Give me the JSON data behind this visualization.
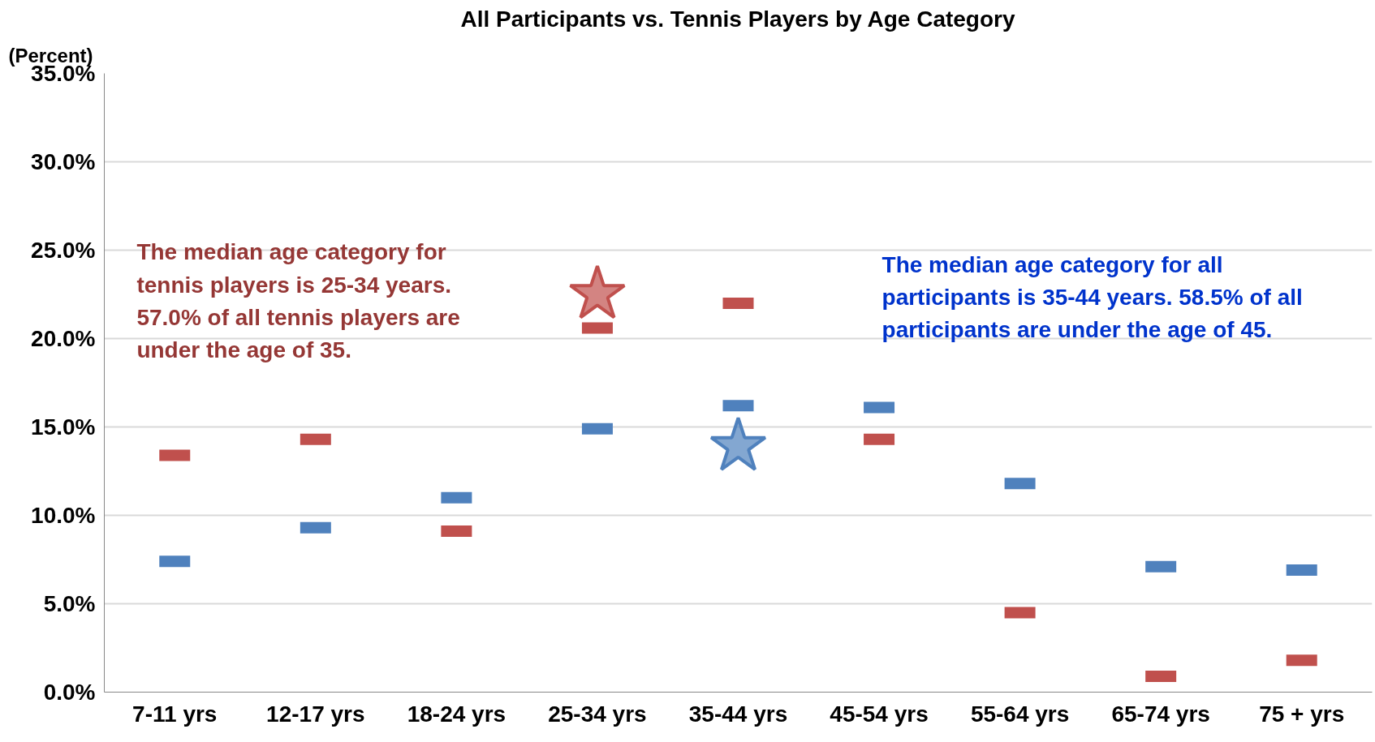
{
  "chart_data": {
    "type": "scatter",
    "title": "All Participants vs. Tennis Players by Age Category",
    "ylabel": "(Percent)",
    "categories": [
      "7-11 yrs",
      "12-17 yrs",
      "18-24 yrs",
      "25-34 yrs",
      "35-44 yrs",
      "45-54 yrs",
      "55-64 yrs",
      "65-74 yrs",
      "75 + yrs"
    ],
    "series": [
      {
        "color": "#4f81bd",
        "values": [
          7.4,
          9.3,
          11.0,
          14.9,
          16.2,
          16.1,
          11.8,
          7.1,
          6.9
        ]
      },
      {
        "color": "#c0504d",
        "values": [
          13.4,
          14.3,
          9.1,
          20.6,
          22.0,
          14.3,
          4.5,
          0.9,
          1.8
        ]
      },
      {
        "color": "#c0504d",
        "marker": "star",
        "x": [
          "25-34 yrs"
        ],
        "values": [
          22.5
        ]
      },
      {
        "color": "#4f81bd",
        "marker": "star",
        "x": [
          "35-44 yrs"
        ],
        "values": [
          13.9
        ]
      }
    ],
    "ylim": [
      0,
      35
    ],
    "yticks": [
      {
        "value": 0,
        "label": "0.0%"
      },
      {
        "value": 5,
        "label": "5.0%"
      },
      {
        "value": 10,
        "label": "10.0%"
      },
      {
        "value": 15,
        "label": "15.0%"
      },
      {
        "value": 20,
        "label": "20.0%"
      },
      {
        "value": 25,
        "label": "25.0%"
      },
      {
        "value": 30,
        "label": "30.0%"
      },
      {
        "value": 35,
        "label": "35.0%"
      }
    ],
    "grid": "y",
    "annotations": [
      "The median age category for\ntennis players is 25-34 years.\n57.0% of all tennis players are\nunder the age of 35.",
      "The median age category for all\nparticipants is 35-44 years. 58.5% of all\nparticipants are under the age of 45."
    ]
  }
}
